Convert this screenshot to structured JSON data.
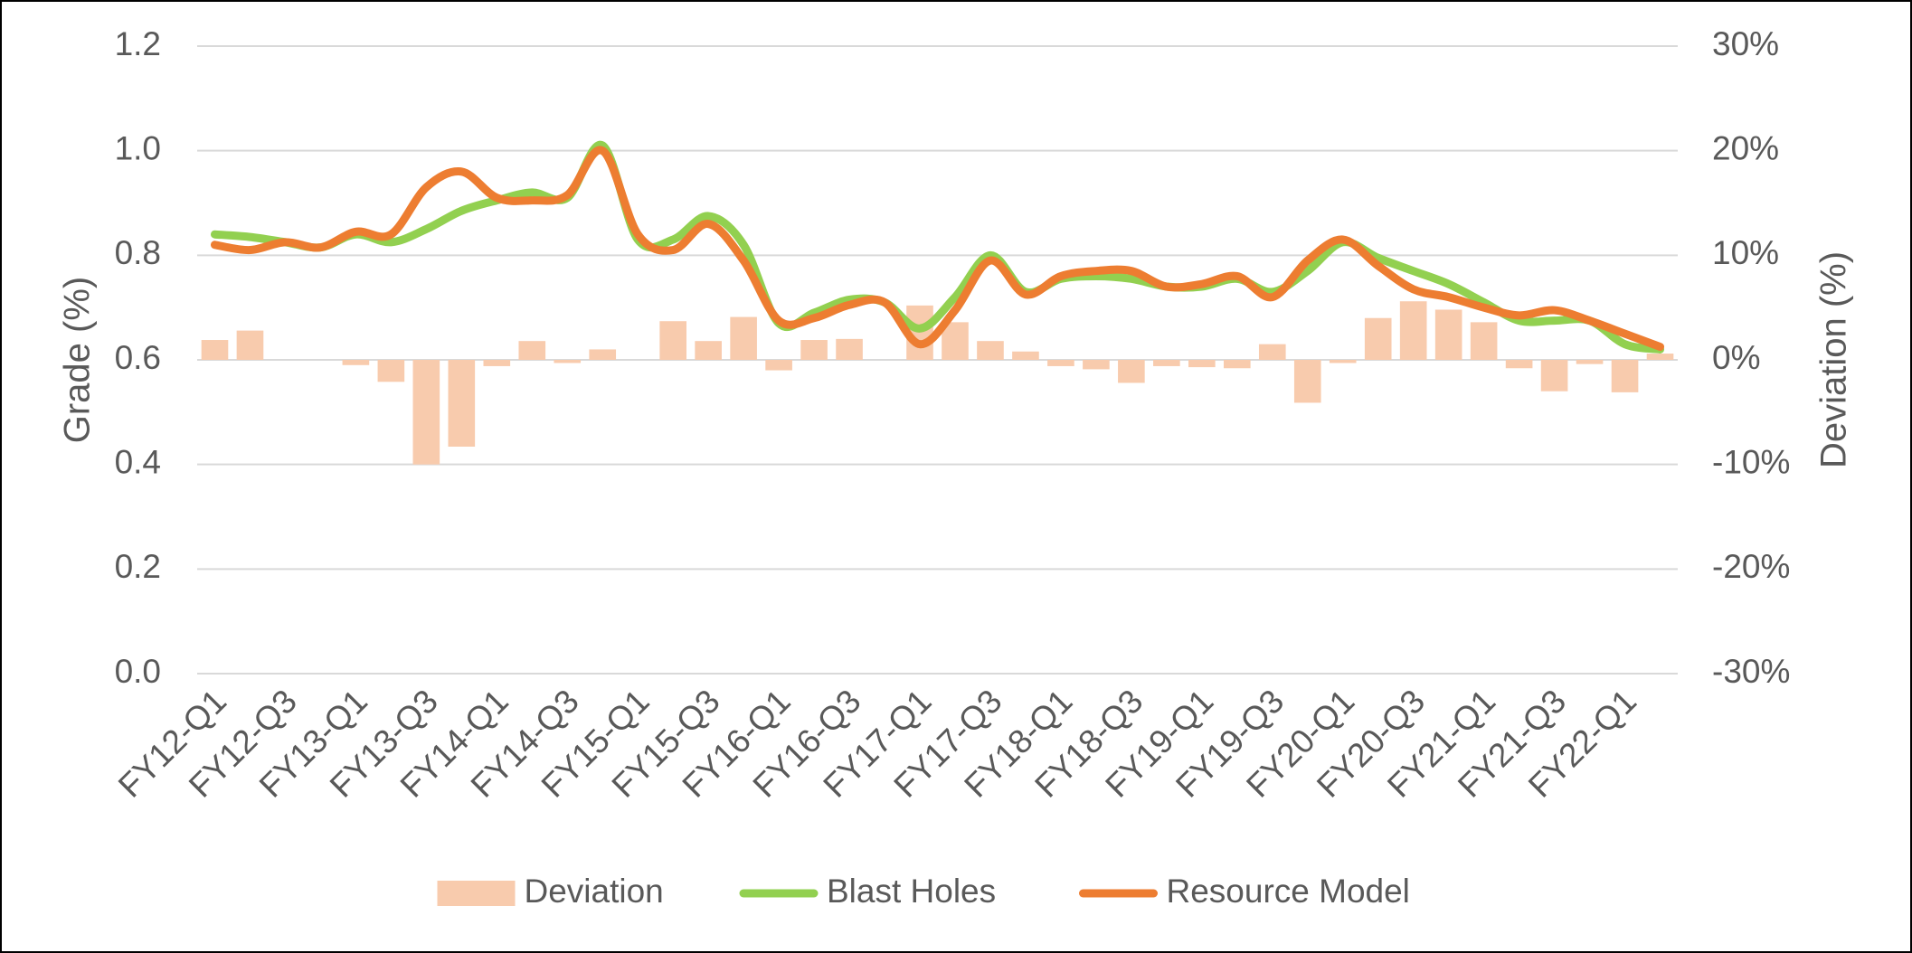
{
  "chart_data": {
    "type": "combo",
    "y_label": "Grade (%)",
    "y2_label": "Deviation (%)",
    "categories": [
      "FY12-Q1",
      null,
      "FY12-Q3",
      null,
      "FY13-Q1",
      null,
      "FY13-Q3",
      null,
      "FY14-Q1",
      null,
      "FY14-Q3",
      null,
      "FY15-Q1",
      null,
      "FY15-Q3",
      null,
      "FY16-Q1",
      null,
      "FY16-Q3",
      null,
      "FY17-Q1",
      null,
      "FY17-Q3",
      null,
      "FY18-Q1",
      null,
      "FY18-Q3",
      null,
      "FY19-Q1",
      null,
      "FY19-Q3",
      null,
      "FY20-Q1",
      null,
      "FY20-Q3",
      null,
      "FY21-Q1",
      null,
      "FY21-Q3",
      null,
      "FY22-Q1",
      null
    ],
    "series": [
      {
        "name": "Deviation",
        "type": "bar",
        "axis": "y2",
        "color": "#f8cbad",
        "values": [
          1.9,
          2.8,
          0,
          0,
          -0.5,
          -2.1,
          -10,
          -8.3,
          -0.6,
          1.8,
          -0.3,
          1.0,
          0,
          3.7,
          1.8,
          4.1,
          -1.0,
          1.9,
          2.0,
          0,
          5.2,
          3.6,
          1.8,
          0.8,
          -0.6,
          -0.9,
          -2.2,
          -0.6,
          -0.7,
          -0.8,
          1.5,
          -4.1,
          -0.3,
          4.0,
          5.6,
          4.8,
          3.6,
          -0.8,
          -3.0,
          -0.4,
          -3.1,
          0.6
        ]
      },
      {
        "name": "Blast Holes",
        "type": "line",
        "axis": "y",
        "color": "#92d050",
        "values": [
          0.84,
          0.835,
          0.825,
          0.815,
          0.84,
          0.825,
          0.85,
          0.885,
          0.905,
          0.92,
          0.91,
          1.01,
          0.83,
          0.83,
          0.875,
          0.82,
          0.67,
          0.69,
          0.715,
          0.71,
          0.66,
          0.72,
          0.8,
          0.73,
          0.755,
          0.76,
          0.755,
          0.74,
          0.74,
          0.755,
          0.73,
          0.77,
          0.825,
          0.795,
          0.77,
          0.745,
          0.71,
          0.675,
          0.675,
          0.675,
          0.63,
          0.62
        ]
      },
      {
        "name": "Resource Model",
        "type": "line",
        "axis": "y",
        "color": "#ed7d31",
        "values": [
          0.82,
          0.81,
          0.825,
          0.815,
          0.845,
          0.84,
          0.93,
          0.96,
          0.91,
          0.905,
          0.915,
          1.0,
          0.84,
          0.81,
          0.86,
          0.79,
          0.675,
          0.68,
          0.705,
          0.71,
          0.63,
          0.695,
          0.79,
          0.725,
          0.76,
          0.77,
          0.77,
          0.74,
          0.745,
          0.76,
          0.72,
          0.79,
          0.83,
          0.78,
          0.735,
          0.72,
          0.7,
          0.685,
          0.695,
          0.675,
          0.65,
          0.625
        ]
      }
    ],
    "ylim": [
      0,
      1.2
    ],
    "yticks": [
      {
        "value": 0,
        "label": "0.0"
      },
      0.2,
      0.4,
      0.6,
      0.8,
      {
        "value": 1,
        "label": "1.0"
      },
      1.2
    ],
    "y2lim": [
      -30,
      30
    ],
    "y2ticks": [
      {
        "value": -30,
        "label": "-30%"
      },
      {
        "value": -20,
        "label": "-20%"
      },
      {
        "value": -10,
        "label": "-10%"
      },
      {
        "value": 0,
        "label": "0%"
      },
      {
        "value": 10,
        "label": "10%"
      },
      {
        "value": 20,
        "label": "20%"
      },
      {
        "value": 30,
        "label": "30%"
      }
    ],
    "grid": true,
    "legend": "bottom"
  }
}
